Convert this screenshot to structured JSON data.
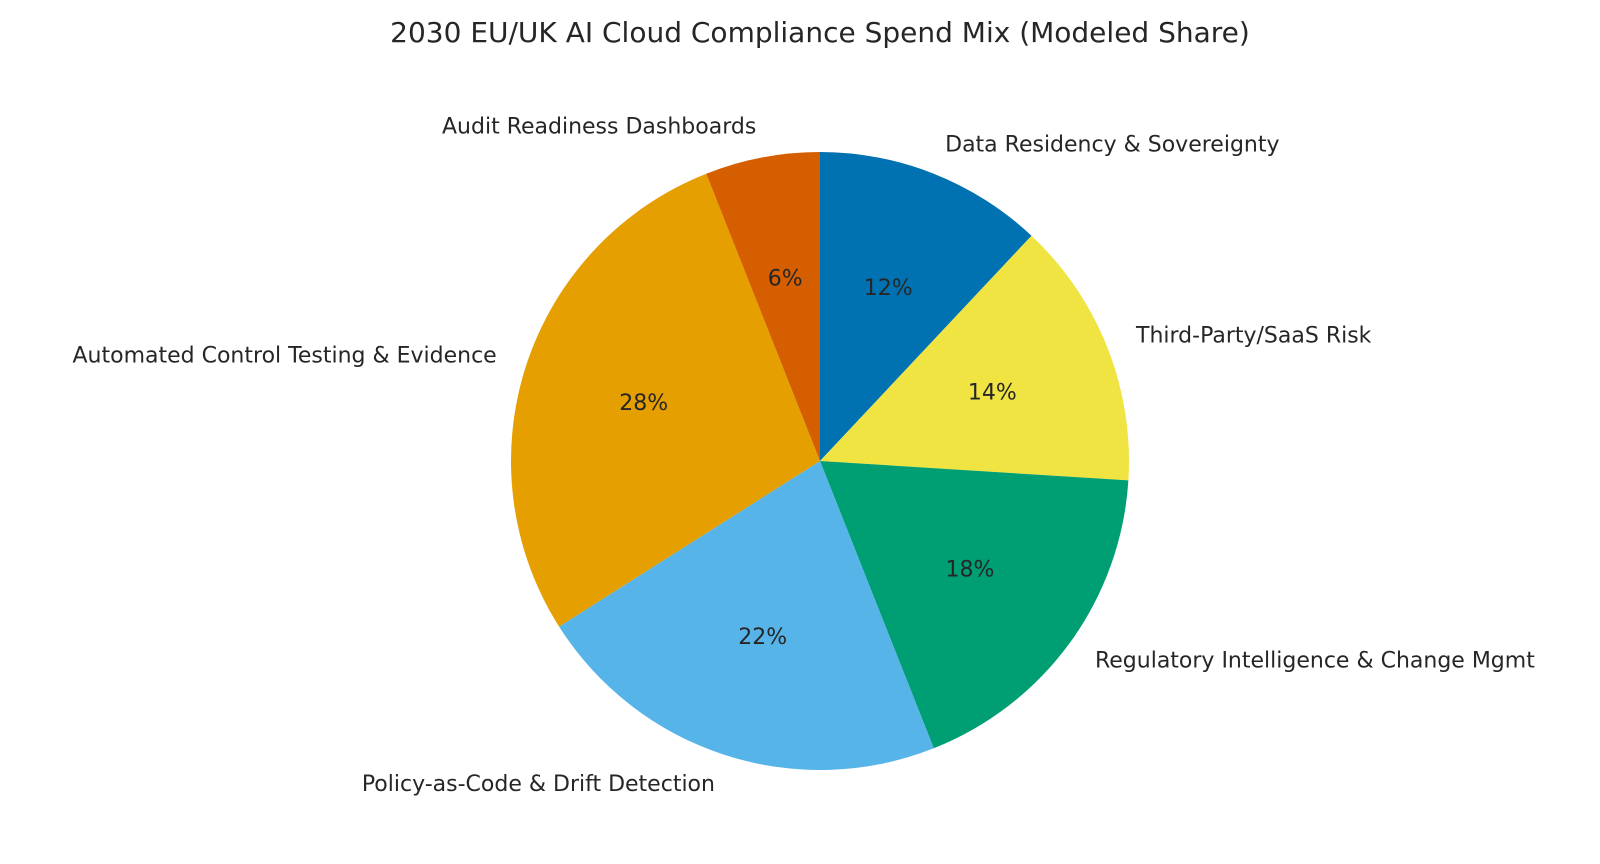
{
  "chart_data": {
    "type": "pie",
    "title": "2030 EU/UK AI Cloud Compliance Spend Mix (Modeled Share)",
    "start_angle_deg": 90,
    "direction": "clockwise",
    "autopct_format": "{v}%",
    "slices": [
      {
        "label": "Data Residency & Sovereignty",
        "value": 12,
        "pct_text": "12%",
        "color": "#0072B2"
      },
      {
        "label": "Third-Party/SaaS Risk",
        "value": 14,
        "pct_text": "14%",
        "color": "#F0E442"
      },
      {
        "label": "Regulatory Intelligence & Change Mgmt",
        "value": 18,
        "pct_text": "18%",
        "color": "#009E73"
      },
      {
        "label": "Policy-as-Code & Drift Detection",
        "value": 22,
        "pct_text": "22%",
        "color": "#56B4E9"
      },
      {
        "label": "Automated Control Testing & Evidence",
        "value": 28,
        "pct_text": "28%",
        "color": "#E69F00"
      },
      {
        "label": "Audit Readiness Dashboards",
        "value": 6,
        "pct_text": "6%",
        "color": "#D55E00"
      }
    ]
  }
}
